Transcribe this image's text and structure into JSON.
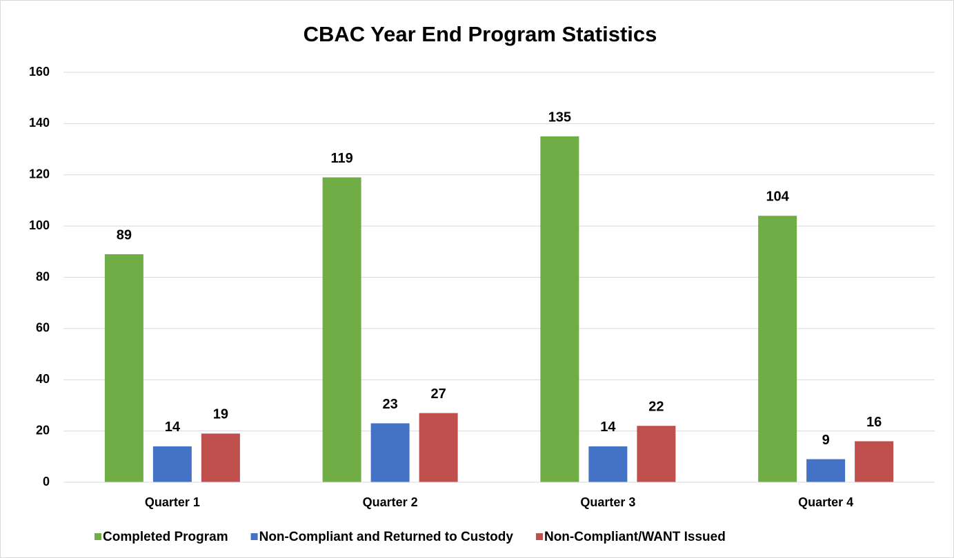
{
  "chart_data": {
    "type": "bar",
    "title": "CBAC Year End Program Statistics",
    "categories": [
      "Quarter 1",
      "Quarter 2",
      "Quarter 3",
      "Quarter 4"
    ],
    "series": [
      {
        "name": "Completed Program",
        "color": "#70ad47",
        "values": [
          89,
          119,
          135,
          104
        ]
      },
      {
        "name": "Non-Compliant and Returned to Custody",
        "color": "#4472c4",
        "values": [
          14,
          23,
          14,
          9
        ]
      },
      {
        "name": "Non-Compliant/WANT Issued",
        "color": "#c0504d",
        "values": [
          19,
          27,
          22,
          16
        ]
      }
    ],
    "ylim": [
      0,
      160
    ],
    "yticks": [
      0,
      20,
      40,
      60,
      80,
      100,
      120,
      140,
      160
    ],
    "grid": true,
    "legend": "bottom"
  }
}
